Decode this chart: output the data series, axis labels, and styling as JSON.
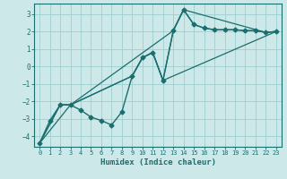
{
  "xlabel": "Humidex (Indice chaleur)",
  "xlim": [
    -0.5,
    23.5
  ],
  "ylim": [
    -4.6,
    3.6
  ],
  "yticks": [
    -4,
    -3,
    -2,
    -1,
    0,
    1,
    2,
    3
  ],
  "xticks": [
    0,
    1,
    2,
    3,
    4,
    5,
    6,
    7,
    8,
    9,
    10,
    11,
    12,
    13,
    14,
    15,
    16,
    17,
    18,
    19,
    20,
    21,
    22,
    23
  ],
  "bg_color": "#cde8e8",
  "line_color": "#1a6e6e",
  "grid_color": "#9ecece",
  "lines": [
    {
      "x": [
        0,
        1,
        2,
        3,
        4,
        5,
        6,
        7,
        8,
        9,
        10,
        11,
        12,
        13,
        14,
        15,
        16,
        17,
        18,
        19,
        20,
        21,
        22,
        23
      ],
      "y": [
        -4.4,
        -3.1,
        -2.2,
        -2.2,
        -2.5,
        -2.9,
        -3.1,
        -3.35,
        -2.6,
        -0.55,
        0.5,
        0.8,
        -0.8,
        2.05,
        3.25,
        2.4,
        2.2,
        2.1,
        2.1,
        2.1,
        2.05,
        2.05,
        1.95,
        2.0
      ],
      "marker": "D",
      "markersize": 2.5,
      "linewidth": 1.0,
      "has_marker": true
    },
    {
      "x": [
        0,
        2,
        3,
        13,
        14,
        15,
        16,
        17,
        18,
        19,
        20,
        21,
        22,
        23
      ],
      "y": [
        -4.4,
        -2.2,
        -2.2,
        2.05,
        3.25,
        2.4,
        2.2,
        2.1,
        2.1,
        2.1,
        2.05,
        2.05,
        1.95,
        2.0
      ],
      "has_marker": false,
      "linewidth": 0.9
    },
    {
      "x": [
        0,
        3,
        9,
        10,
        11,
        12,
        13,
        14,
        22,
        23
      ],
      "y": [
        -4.4,
        -2.2,
        -0.55,
        0.5,
        0.8,
        -0.8,
        2.05,
        3.25,
        1.95,
        2.0
      ],
      "has_marker": false,
      "linewidth": 0.9
    },
    {
      "x": [
        0,
        2,
        3,
        9,
        10,
        11,
        12,
        23
      ],
      "y": [
        -4.4,
        -2.2,
        -2.2,
        -0.55,
        0.5,
        0.8,
        -0.8,
        2.0
      ],
      "has_marker": false,
      "linewidth": 0.9
    }
  ]
}
